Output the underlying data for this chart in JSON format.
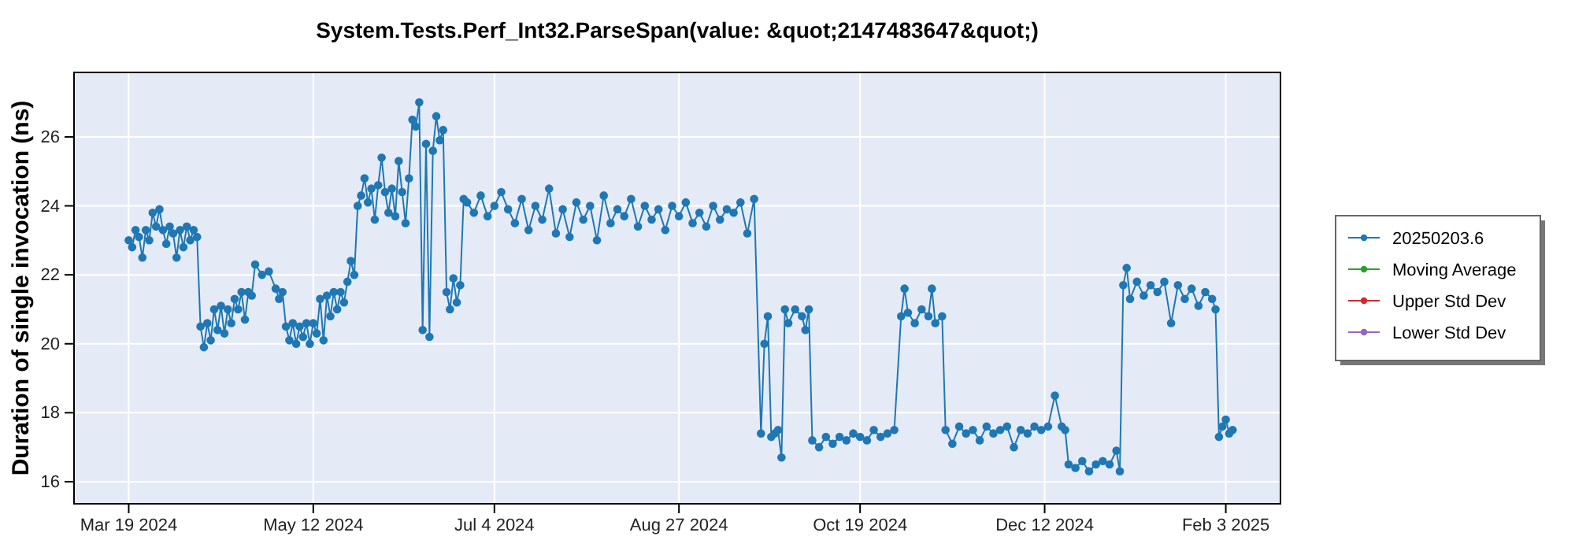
{
  "chart_data": {
    "type": "line",
    "title": "System.Tests.Perf_Int32.ParseSpan(value: &quot;2147483647&quot;)",
    "ylabel": "Duration of single invocation (ns)",
    "xlim": [
      "2024-03-03",
      "2025-02-19"
    ],
    "xticks": [
      {
        "value": "2024-03-19",
        "label": "Mar 19 2024"
      },
      {
        "value": "2024-05-12",
        "label": "May 12 2024"
      },
      {
        "value": "2024-07-04",
        "label": "Jul 4 2024"
      },
      {
        "value": "2024-08-27",
        "label": "Aug 27 2024"
      },
      {
        "value": "2024-10-19",
        "label": "Oct 19 2024"
      },
      {
        "value": "2024-12-12",
        "label": "Dec 12 2024"
      },
      {
        "value": "2025-02-03",
        "label": "Feb 3 2025"
      }
    ],
    "ylim": [
      15.36,
      27.87
    ],
    "yticks": [
      16,
      18,
      20,
      22,
      24,
      26
    ],
    "grid": true,
    "legend": "right",
    "marker": "circle",
    "line_style": "solid",
    "x": [
      "2024-03-19",
      "2024-03-20",
      "2024-03-21",
      "2024-03-22",
      "2024-03-23",
      "2024-03-24",
      "2024-03-25",
      "2024-03-26",
      "2024-03-27",
      "2024-03-28",
      "2024-03-29",
      "2024-03-30",
      "2024-03-31",
      "2024-04-01",
      "2024-04-02",
      "2024-04-03",
      "2024-04-04",
      "2024-04-05",
      "2024-04-06",
      "2024-04-07",
      "2024-04-08",
      "2024-04-09",
      "2024-04-10",
      "2024-04-11",
      "2024-04-12",
      "2024-04-13",
      "2024-04-14",
      "2024-04-15",
      "2024-04-16",
      "2024-04-17",
      "2024-04-18",
      "2024-04-19",
      "2024-04-20",
      "2024-04-21",
      "2024-04-22",
      "2024-04-23",
      "2024-04-24",
      "2024-04-25",
      "2024-04-27",
      "2024-04-29",
      "2024-05-01",
      "2024-05-02",
      "2024-05-03",
      "2024-05-04",
      "2024-05-05",
      "2024-05-06",
      "2024-05-07",
      "2024-05-08",
      "2024-05-09",
      "2024-05-10",
      "2024-05-11",
      "2024-05-12",
      "2024-05-13",
      "2024-05-14",
      "2024-05-15",
      "2024-05-16",
      "2024-05-17",
      "2024-05-18",
      "2024-05-19",
      "2024-05-20",
      "2024-05-21",
      "2024-05-22",
      "2024-05-23",
      "2024-05-24",
      "2024-05-25",
      "2024-05-26",
      "2024-05-27",
      "2024-05-28",
      "2024-05-29",
      "2024-05-30",
      "2024-05-31",
      "2024-06-01",
      "2024-06-02",
      "2024-06-03",
      "2024-06-04",
      "2024-06-05",
      "2024-06-06",
      "2024-06-07",
      "2024-06-08",
      "2024-06-09",
      "2024-06-10",
      "2024-06-11",
      "2024-06-12",
      "2024-06-13",
      "2024-06-14",
      "2024-06-15",
      "2024-06-16",
      "2024-06-17",
      "2024-06-18",
      "2024-06-19",
      "2024-06-20",
      "2024-06-21",
      "2024-06-22",
      "2024-06-23",
      "2024-06-24",
      "2024-06-25",
      "2024-06-26",
      "2024-06-28",
      "2024-06-30",
      "2024-07-02",
      "2024-07-04",
      "2024-07-06",
      "2024-07-08",
      "2024-07-10",
      "2024-07-12",
      "2024-07-14",
      "2024-07-16",
      "2024-07-18",
      "2024-07-20",
      "2024-07-22",
      "2024-07-24",
      "2024-07-26",
      "2024-07-28",
      "2024-07-30",
      "2024-08-01",
      "2024-08-03",
      "2024-08-05",
      "2024-08-07",
      "2024-08-09",
      "2024-08-11",
      "2024-08-13",
      "2024-08-15",
      "2024-08-17",
      "2024-08-19",
      "2024-08-21",
      "2024-08-23",
      "2024-08-25",
      "2024-08-27",
      "2024-08-29",
      "2024-08-31",
      "2024-09-02",
      "2024-09-04",
      "2024-09-06",
      "2024-09-08",
      "2024-09-10",
      "2024-09-12",
      "2024-09-14",
      "2024-09-16",
      "2024-09-18",
      "2024-09-20",
      "2024-09-21",
      "2024-09-22",
      "2024-09-23",
      "2024-09-24",
      "2024-09-25",
      "2024-09-26",
      "2024-09-27",
      "2024-09-28",
      "2024-09-30",
      "2024-10-02",
      "2024-10-03",
      "2024-10-04",
      "2024-10-05",
      "2024-10-07",
      "2024-10-09",
      "2024-10-11",
      "2024-10-13",
      "2024-10-15",
      "2024-10-17",
      "2024-10-19",
      "2024-10-21",
      "2024-10-23",
      "2024-10-25",
      "2024-10-27",
      "2024-10-29",
      "2024-10-31",
      "2024-11-01",
      "2024-11-02",
      "2024-11-04",
      "2024-11-06",
      "2024-11-08",
      "2024-11-09",
      "2024-11-10",
      "2024-11-12",
      "2024-11-13",
      "2024-11-15",
      "2024-11-17",
      "2024-11-19",
      "2024-11-21",
      "2024-11-23",
      "2024-11-25",
      "2024-11-27",
      "2024-11-29",
      "2024-12-01",
      "2024-12-03",
      "2024-12-05",
      "2024-12-07",
      "2024-12-09",
      "2024-12-11",
      "2024-12-13",
      "2024-12-15",
      "2024-12-17",
      "2024-12-18",
      "2024-12-19",
      "2024-12-21",
      "2024-12-23",
      "2024-12-25",
      "2024-12-27",
      "2024-12-29",
      "2024-12-31",
      "2025-01-02",
      "2025-01-03",
      "2025-01-04",
      "2025-01-05",
      "2025-01-06",
      "2025-01-08",
      "2025-01-10",
      "2025-01-12",
      "2025-01-14",
      "2025-01-16",
      "2025-01-18",
      "2025-01-20",
      "2025-01-22",
      "2025-01-24",
      "2025-01-26",
      "2025-01-28",
      "2025-01-30",
      "2025-01-31",
      "2025-02-01",
      "2025-02-02",
      "2025-02-03",
      "2025-02-04",
      "2025-02-05"
    ],
    "series": [
      {
        "name": "20250203.6",
        "color": "#1f77b4",
        "values": [
          23.0,
          22.8,
          23.3,
          23.1,
          22.5,
          23.3,
          23.0,
          23.8,
          23.4,
          23.9,
          23.3,
          22.9,
          23.4,
          23.2,
          22.5,
          23.3,
          22.8,
          23.4,
          23.0,
          23.3,
          23.1,
          20.5,
          19.9,
          20.6,
          20.1,
          21.0,
          20.4,
          21.1,
          20.3,
          21.0,
          20.6,
          21.3,
          21.0,
          21.5,
          20.7,
          21.5,
          21.4,
          22.3,
          22.0,
          22.1,
          21.6,
          21.3,
          21.5,
          20.5,
          20.1,
          20.6,
          20.0,
          20.5,
          20.2,
          20.6,
          20.0,
          20.6,
          20.3,
          21.3,
          20.1,
          21.4,
          20.8,
          21.5,
          21.0,
          21.5,
          21.2,
          21.8,
          22.4,
          22.0,
          24.0,
          24.3,
          24.8,
          24.1,
          24.5,
          23.6,
          24.6,
          25.4,
          24.4,
          23.8,
          24.5,
          23.7,
          25.3,
          24.4,
          23.5,
          24.8,
          26.5,
          26.3,
          27.0,
          20.4,
          25.8,
          20.2,
          25.6,
          26.6,
          25.9,
          26.2,
          21.5,
          21.0,
          21.9,
          21.2,
          21.7,
          24.2,
          24.1,
          23.8,
          24.3,
          23.7,
          24.0,
          24.4,
          23.9,
          23.5,
          24.2,
          23.3,
          24.0,
          23.6,
          24.5,
          23.2,
          23.9,
          23.1,
          24.1,
          23.6,
          24.0,
          23.0,
          24.3,
          23.5,
          23.9,
          23.7,
          24.2,
          23.4,
          24.0,
          23.6,
          23.9,
          23.3,
          24.0,
          23.7,
          24.1,
          23.5,
          23.8,
          23.4,
          24.0,
          23.6,
          23.9,
          23.8,
          24.1,
          23.2,
          24.2,
          17.4,
          20.0,
          20.8,
          17.3,
          17.4,
          17.5,
          16.7,
          21.0,
          20.6,
          21.0,
          20.8,
          20.4,
          21.0,
          17.2,
          17.0,
          17.3,
          17.1,
          17.3,
          17.2,
          17.4,
          17.3,
          17.2,
          17.5,
          17.3,
          17.4,
          17.5,
          20.8,
          21.6,
          20.9,
          20.6,
          21.0,
          20.8,
          21.6,
          20.6,
          20.8,
          17.5,
          17.1,
          17.6,
          17.4,
          17.5,
          17.2,
          17.6,
          17.4,
          17.5,
          17.6,
          17.0,
          17.5,
          17.4,
          17.6,
          17.5,
          17.6,
          18.5,
          17.6,
          17.5,
          16.5,
          16.4,
          16.6,
          16.3,
          16.5,
          16.6,
          16.5,
          16.9,
          16.3,
          21.7,
          22.2,
          21.3,
          21.8,
          21.4,
          21.7,
          21.5,
          21.8,
          20.6,
          21.7,
          21.3,
          21.6,
          21.1,
          21.5,
          21.3,
          21.0,
          17.3,
          17.6,
          17.8,
          17.4,
          17.5
        ]
      },
      {
        "name": "Moving Average",
        "color": "#2ca02c",
        "values": [
          null,
          null,
          null,
          null,
          null,
          null,
          null,
          null,
          null,
          null,
          null,
          null,
          null,
          null,
          null,
          null,
          null,
          null,
          null,
          null,
          null,
          null,
          null,
          null,
          null,
          null,
          null,
          null,
          null,
          null,
          null,
          null,
          null,
          null,
          null,
          null,
          null,
          null,
          null,
          null,
          null,
          null,
          null,
          null,
          null,
          null,
          null,
          null,
          null,
          null,
          null,
          null,
          null,
          null,
          null,
          null,
          null,
          null,
          null,
          null,
          null,
          null,
          null,
          null,
          null,
          null,
          null,
          null,
          null,
          null,
          null,
          null,
          null,
          null,
          null,
          null,
          null,
          null,
          null,
          null,
          null,
          null,
          null,
          null,
          null,
          null,
          null,
          null,
          null,
          null,
          null,
          null,
          null,
          null,
          null,
          null,
          null,
          null,
          null,
          null,
          null,
          null,
          null,
          null,
          null,
          null,
          null,
          null,
          null,
          null,
          null,
          null,
          null,
          null,
          null,
          null,
          null,
          null,
          null,
          null,
          null,
          null,
          null,
          null,
          null,
          null,
          null,
          null,
          null,
          null,
          null,
          null,
          null,
          null,
          null,
          null,
          null,
          null,
          null,
          null,
          null,
          null,
          null,
          null,
          null,
          null,
          null,
          null,
          null,
          null,
          null,
          null,
          null,
          null,
          null,
          null,
          null,
          null,
          null,
          null,
          null,
          null,
          null,
          null,
          null,
          null,
          null,
          null,
          null,
          null,
          null,
          null,
          null,
          null,
          null,
          null,
          null,
          null,
          null,
          null,
          null,
          null,
          null,
          null,
          null,
          null,
          null,
          null,
          null,
          null,
          null,
          null,
          null,
          null,
          null,
          null,
          null,
          null,
          null,
          null,
          null,
          null,
          null,
          null,
          null,
          null,
          null,
          null,
          null,
          null,
          null,
          null,
          null,
          null,
          null,
          null,
          null,
          null,
          null,
          null,
          null,
          null,
          null
        ]
      },
      {
        "name": "Upper Std Dev",
        "color": "#d62728",
        "values": [
          null,
          null,
          null,
          null,
          null,
          null,
          null,
          null,
          null,
          null,
          null,
          null,
          null,
          null,
          null,
          null,
          null,
          null,
          null,
          null,
          null,
          null,
          null,
          null,
          null,
          null,
          null,
          null,
          null,
          null,
          null,
          null,
          null,
          null,
          null,
          null,
          null,
          null,
          null,
          null,
          null,
          null,
          null,
          null,
          null,
          null,
          null,
          null,
          null,
          null,
          null,
          null,
          null,
          null,
          null,
          null,
          null,
          null,
          null,
          null,
          null,
          null,
          null,
          null,
          null,
          null,
          null,
          null,
          null,
          null,
          null,
          null,
          null,
          null,
          null,
          null,
          null,
          null,
          null,
          null,
          null,
          null,
          null,
          null,
          null,
          null,
          null,
          null,
          null,
          null,
          null,
          null,
          null,
          null,
          null,
          null,
          null,
          null,
          null,
          null,
          null,
          null,
          null,
          null,
          null,
          null,
          null,
          null,
          null,
          null,
          null,
          null,
          null,
          null,
          null,
          null,
          null,
          null,
          null,
          null,
          null,
          null,
          null,
          null,
          null,
          null,
          null,
          null,
          null,
          null,
          null,
          null,
          null,
          null,
          null,
          null,
          null,
          null,
          null,
          null,
          null,
          null,
          null,
          null,
          null,
          null,
          null,
          null,
          null,
          null,
          null,
          null,
          null,
          null,
          null,
          null,
          null,
          null,
          null,
          null,
          null,
          null,
          null,
          null,
          null,
          null,
          null,
          null,
          null,
          null,
          null,
          null,
          null,
          null,
          null,
          null,
          null,
          null,
          null,
          null,
          null,
          null,
          null,
          null,
          null,
          null,
          null,
          null,
          null,
          null,
          null,
          null,
          null,
          null,
          null,
          null,
          null,
          null,
          null,
          null,
          null,
          null,
          null,
          null,
          null,
          null,
          null,
          null,
          null,
          null,
          null,
          null,
          null,
          null,
          null,
          null,
          null,
          null,
          null,
          null,
          null,
          null,
          null
        ]
      },
      {
        "name": "Lower Std Dev",
        "color": "#9467bd",
        "values": [
          null,
          null,
          null,
          null,
          null,
          null,
          null,
          null,
          null,
          null,
          null,
          null,
          null,
          null,
          null,
          null,
          null,
          null,
          null,
          null,
          null,
          null,
          null,
          null,
          null,
          null,
          null,
          null,
          null,
          null,
          null,
          null,
          null,
          null,
          null,
          null,
          null,
          null,
          null,
          null,
          null,
          null,
          null,
          null,
          null,
          null,
          null,
          null,
          null,
          null,
          null,
          null,
          null,
          null,
          null,
          null,
          null,
          null,
          null,
          null,
          null,
          null,
          null,
          null,
          null,
          null,
          null,
          null,
          null,
          null,
          null,
          null,
          null,
          null,
          null,
          null,
          null,
          null,
          null,
          null,
          null,
          null,
          null,
          null,
          null,
          null,
          null,
          null,
          null,
          null,
          null,
          null,
          null,
          null,
          null,
          null,
          null,
          null,
          null,
          null,
          null,
          null,
          null,
          null,
          null,
          null,
          null,
          null,
          null,
          null,
          null,
          null,
          null,
          null,
          null,
          null,
          null,
          null,
          null,
          null,
          null,
          null,
          null,
          null,
          null,
          null,
          null,
          null,
          null,
          null,
          null,
          null,
          null,
          null,
          null,
          null,
          null,
          null,
          null,
          null,
          null,
          null,
          null,
          null,
          null,
          null,
          null,
          null,
          null,
          null,
          null,
          null,
          null,
          null,
          null,
          null,
          null,
          null,
          null,
          null,
          null,
          null,
          null,
          null,
          null,
          null,
          null,
          null,
          null,
          null,
          null,
          null,
          null,
          null,
          null,
          null,
          null,
          null,
          null,
          null,
          null,
          null,
          null,
          null,
          null,
          null,
          null,
          null,
          null,
          null,
          null,
          null,
          null,
          null,
          null,
          null,
          null,
          null,
          null,
          null,
          null,
          null,
          null,
          null,
          null,
          null,
          null,
          null,
          null,
          null,
          null,
          null,
          null,
          null,
          null,
          null,
          null,
          null,
          null,
          null,
          null,
          null,
          null
        ]
      }
    ]
  }
}
